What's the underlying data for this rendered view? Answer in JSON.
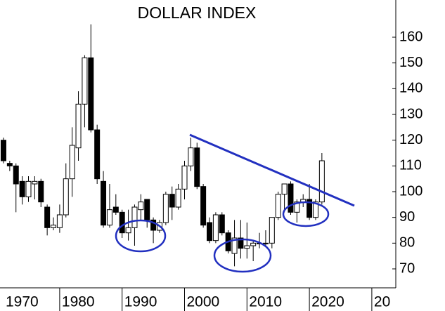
{
  "chart_data": {
    "type": "candlestick",
    "title": "DOLLAR INDEX",
    "x": [
      1971,
      1972,
      1973,
      1974,
      1975,
      1976,
      1977,
      1978,
      1979,
      1980,
      1981,
      1982,
      1983,
      1984,
      1985,
      1986,
      1987,
      1988,
      1989,
      1990,
      1991,
      1992,
      1993,
      1994,
      1995,
      1996,
      1997,
      1998,
      1999,
      2000,
      2001,
      2002,
      2003,
      2004,
      2005,
      2006,
      2007,
      2008,
      2009,
      2010,
      2011,
      2012,
      2013,
      2014,
      2015,
      2016,
      2017,
      2018,
      2019,
      2020,
      2021,
      2022
    ],
    "open": [
      120,
      111,
      110,
      104,
      98,
      103,
      104,
      94,
      86,
      86,
      91,
      105,
      117,
      134,
      152,
      124,
      104,
      87,
      94,
      92,
      84,
      86,
      93,
      97,
      89,
      85,
      88,
      99,
      94,
      101,
      110,
      117,
      102,
      88,
      81,
      91,
      84,
      76,
      82,
      78,
      79,
      80,
      80,
      80,
      90,
      99,
      103,
      92,
      96,
      97,
      90,
      96
    ],
    "high": [
      121,
      112,
      111,
      106,
      106,
      106,
      105,
      95,
      90,
      95,
      111,
      125,
      139,
      153,
      165,
      126,
      108,
      103,
      99,
      93,
      93,
      95,
      99,
      97,
      90,
      89,
      100,
      102,
      103,
      112,
      121,
      119,
      103,
      90,
      92,
      92,
      85,
      89,
      89,
      88,
      81,
      84,
      85,
      90,
      100,
      103,
      104,
      97,
      99,
      103,
      97,
      115
    ],
    "low": [
      111,
      108,
      92,
      95,
      96,
      97,
      94,
      83,
      85,
      84,
      90,
      98,
      112,
      125,
      123,
      103,
      86,
      86,
      91,
      82,
      81,
      79,
      89,
      86,
      80,
      84,
      87,
      89,
      93,
      97,
      108,
      101,
      86,
      80,
      80,
      83,
      76,
      71,
      74,
      74,
      73,
      78,
      79,
      78,
      89,
      92,
      91,
      88,
      94,
      89,
      89,
      95
    ],
    "close": [
      112,
      110,
      103,
      98,
      104,
      104,
      96,
      86,
      87,
      91,
      105,
      118,
      134,
      152,
      124,
      105,
      87,
      93,
      92,
      84,
      86,
      94,
      96,
      89,
      85,
      88,
      99,
      94,
      101,
      110,
      117,
      102,
      87,
      81,
      91,
      84,
      77,
      82,
      78,
      79,
      80,
      80,
      80,
      90,
      99,
      103,
      92,
      96,
      97,
      90,
      96,
      112
    ],
    "up_color": "#ffffff",
    "down_color": "#000000",
    "ylim": [
      62.64,
      174.45
    ],
    "yticks": [
      70,
      80,
      90,
      100,
      110,
      120,
      130,
      140,
      150,
      160
    ],
    "xlim": [
      1970.44,
      2033.84
    ],
    "xticks": [
      1970,
      1980,
      1990,
      2000,
      2010,
      2020,
      {
        "value": 2030,
        "label": "20"
      }
    ],
    "grid": false
  }
}
